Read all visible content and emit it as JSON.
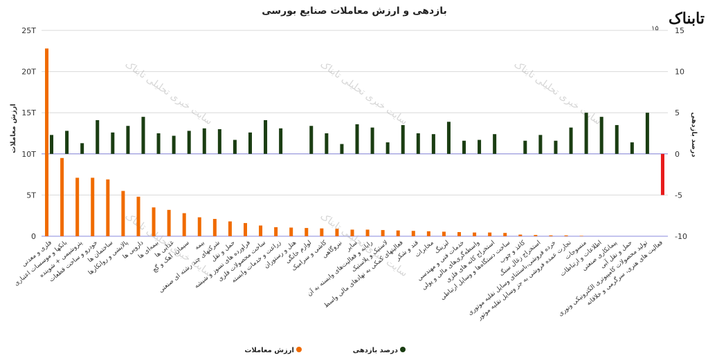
{
  "logo": {
    "text": "تابناک",
    "subtext": "۱۵"
  },
  "watermark": "سایت خبری تحلیلی تابناک",
  "chart_data": {
    "type": "bar",
    "title": "بازدهی و ارزش معاملات صنایع بورسی",
    "ylabel_left": "ارزش معاملات",
    "ylabel_right": "درصد بازدهی",
    "left_ticks": [
      "0",
      "5T",
      "10T",
      "15T",
      "20T",
      "25T"
    ],
    "right_ticks": [
      "-10",
      "-5",
      "0",
      "5",
      "10",
      "15"
    ],
    "ylim_left": [
      0,
      25
    ],
    "ylim_right": [
      -10,
      15
    ],
    "colors": {
      "trade": "#f06b00",
      "return_positive": "#1a3d12",
      "return_negative": "#e81b1b",
      "grid": "#d9d9d9",
      "zero_line": "#8888dd"
    },
    "legend": {
      "trade": "ارزش معاملات",
      "return": "درصد بازدهی"
    },
    "categories": [
      "فلزی و معدنی",
      "بانکها و موسسات اعتباری",
      "پتروشیمی + شوینده",
      "خودرو و ساخت قطعات",
      "ساختمان ها",
      "پالایشی و روانکارها",
      "دارویی ها",
      "بیمه‌ای ها",
      "غذایی ها",
      "سیمان، آهک و گچ",
      "بیمه",
      "شرکتهای چند رشته ای صنعتی",
      "حمل و نقل",
      "فراورده های نسوز و شیشه",
      "ساخت محصولات فلزی",
      "زراعت و خدمات وابسته",
      "هتل و رستوران",
      "لوازم خانگی",
      "کاشی و سرامیک",
      "نیروگاهی",
      "سایر",
      "رایانه و فعالیت‌های وابسته به آن",
      "لاستیک و پلاستیک",
      "فعالیتهای کمکی به نهادهای مالی واسط",
      "قند و شکر",
      "مخابرات",
      "لیزینگ",
      "خدمات فنی و مهندسی",
      "واسطه‌گری‌های مالی و پولی",
      "استخراج کانه های فلزی",
      "ساخت دستگاه‌ها و وسایل ارتباطی",
      "کاغذ و چوب",
      "استخراج زغال سنگ",
      "خرده فروشی،باستثنای وسایل نقلیه موتوری",
      "تجارت عمده فروشی به جز وسایل نقلیه موتور",
      "منسوجات",
      "اطلاعات و ارتباطات",
      "پیمانکاری صنعتی",
      "حمل و نقل آبی",
      "تولید محصولات کامپیوتری الکترونیکی ونوری",
      "فعالیت های هنری، سرگرمی و خلاقانه"
    ],
    "series": [
      {
        "name": "ارزش معاملات",
        "axis": "left",
        "values": [
          22.8,
          9.5,
          7.1,
          7.1,
          6.9,
          5.5,
          4.8,
          3.5,
          3.2,
          2.8,
          2.3,
          2.1,
          1.8,
          1.6,
          1.3,
          1.1,
          1.05,
          1.0,
          0.95,
          0.9,
          0.8,
          0.8,
          0.75,
          0.7,
          0.65,
          0.6,
          0.55,
          0.5,
          0.45,
          0.45,
          0.4,
          0.2,
          0.15,
          0.1,
          0.1,
          0.05,
          0,
          0,
          0,
          0,
          0
        ]
      },
      {
        "name": "درصد بازدهی",
        "axis": "right",
        "values": [
          2.3,
          2.8,
          1.3,
          4.1,
          2.6,
          3.4,
          4.5,
          2.5,
          2.2,
          2.8,
          3.1,
          3.0,
          1.7,
          2.6,
          4.1,
          3.1,
          0,
          3.4,
          2.5,
          1.2,
          3.6,
          3.2,
          1.4,
          3.5,
          2.5,
          2.4,
          3.9,
          1.6,
          1.7,
          2.4,
          0,
          1.6,
          2.3,
          1.6,
          3.2,
          5.0,
          4.5,
          3.5,
          1.4,
          5.0,
          -5.0
        ]
      }
    ]
  }
}
